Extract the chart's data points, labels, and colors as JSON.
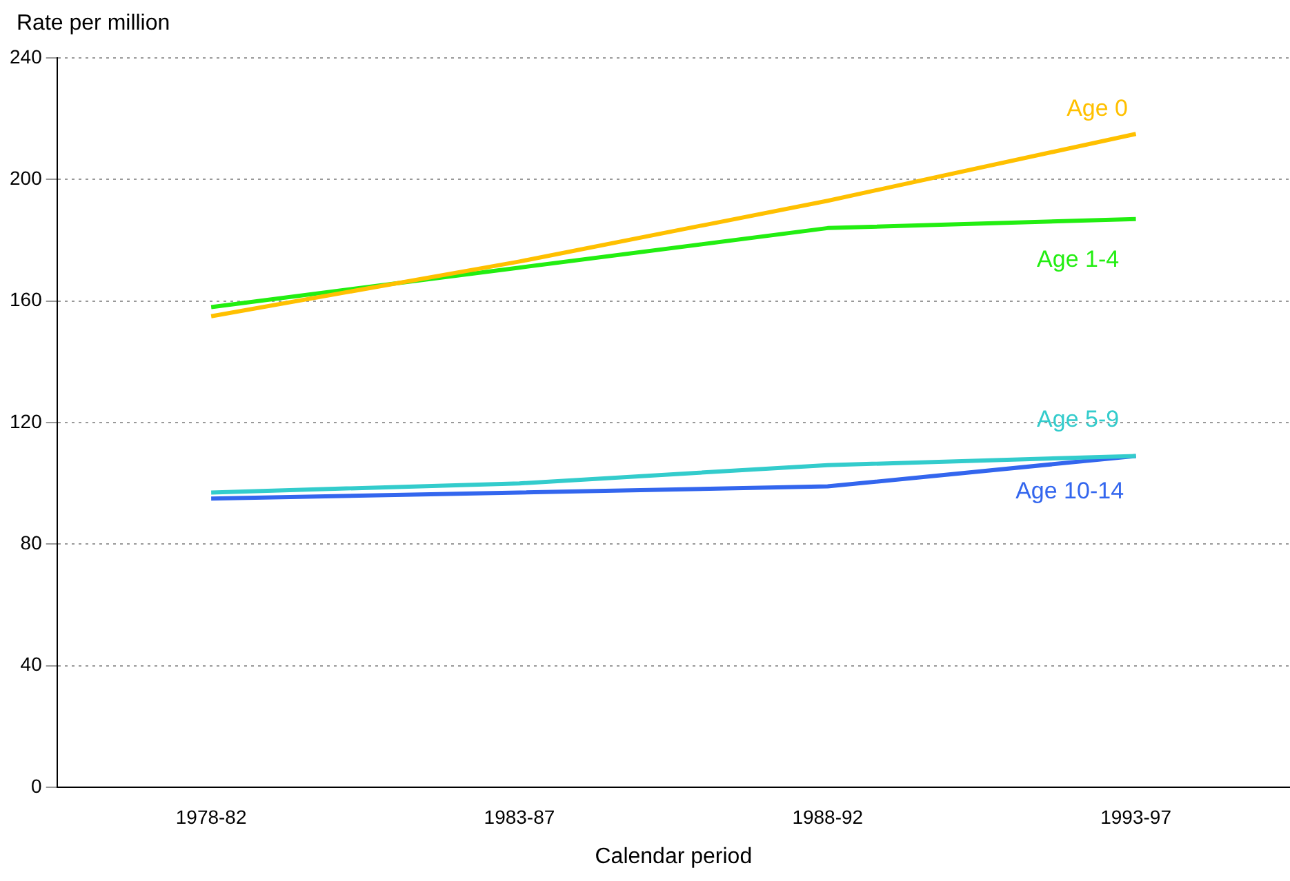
{
  "chart_data": {
    "type": "line",
    "xlabel": "Calendar period",
    "ylabel": "Rate per million",
    "categories": [
      "1978-82",
      "1983-87",
      "1988-92",
      "1993-97"
    ],
    "series": [
      {
        "name": "Age 0",
        "color": "#ffc000",
        "values": [
          155,
          173,
          193,
          215
        ]
      },
      {
        "name": "Age 1-4",
        "color": "#22ee11",
        "values": [
          158,
          171,
          184,
          187
        ]
      },
      {
        "name": "Age 5-9",
        "color": "#33cccc",
        "values": [
          97,
          100,
          106,
          109
        ]
      },
      {
        "name": "Age 10-14",
        "color": "#3366ee",
        "values": [
          95,
          97,
          99,
          109
        ]
      }
    ],
    "ylim": [
      0,
      240
    ],
    "yticks": [
      0,
      40,
      80,
      120,
      160,
      200,
      240
    ],
    "grid": "y",
    "legend": false,
    "marker": "none",
    "line_style": "solid"
  }
}
